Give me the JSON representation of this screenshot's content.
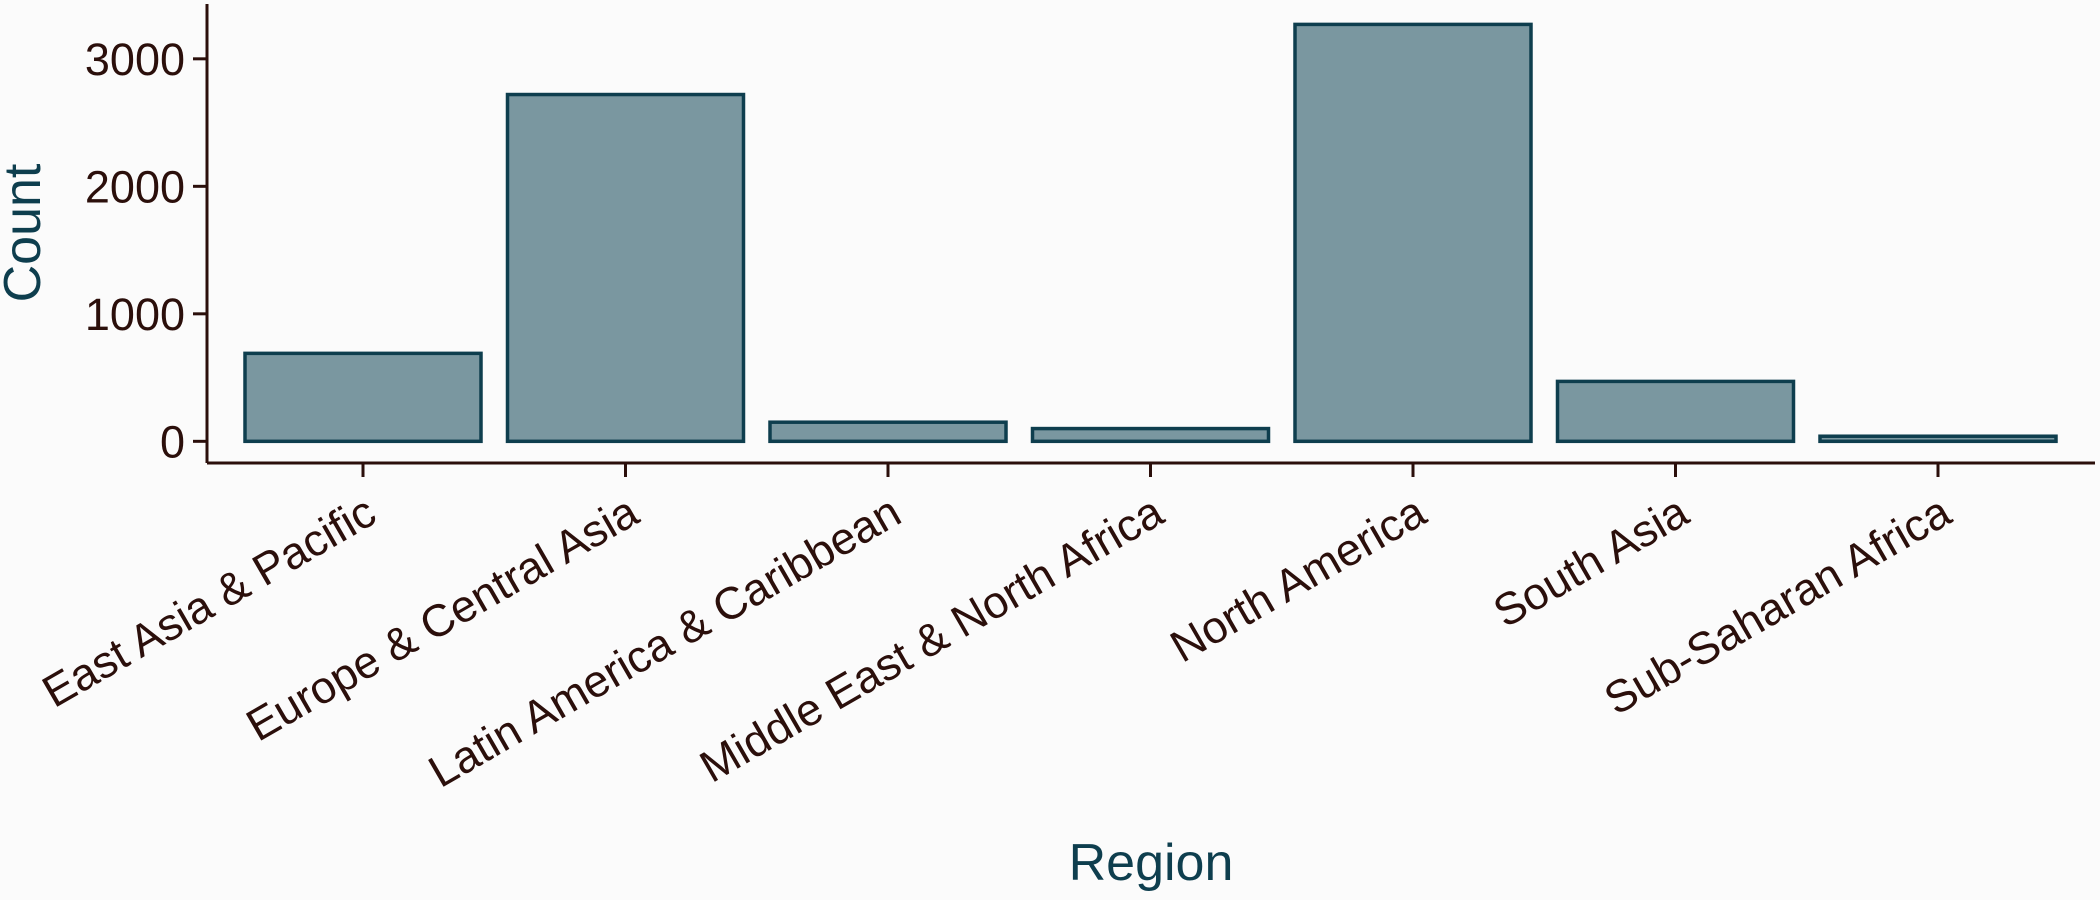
{
  "chart_data": {
    "type": "bar",
    "title": "",
    "xlabel": "Region",
    "ylabel": "Count",
    "categories": [
      "East Asia & Pacific",
      "Europe & Central Asia",
      "Latin America & Caribbean",
      "Middle East & North Africa",
      "North America",
      "South Asia",
      "Sub-Saharan Africa"
    ],
    "values": [
      690,
      2720,
      150,
      100,
      3270,
      470,
      40
    ],
    "ylim": [
      -170,
      3430
    ],
    "yticks": [
      0,
      1000,
      2000,
      3000
    ],
    "grid": false,
    "legend": "none",
    "colors": {
      "bar_fill": "#7a97a0",
      "bar_stroke": "#0e3e4e",
      "axis": "#2b0f0b",
      "tick_label": "#2b0f0b",
      "axis_title": "#0e3e4e",
      "background": "#fbfbfb"
    }
  }
}
